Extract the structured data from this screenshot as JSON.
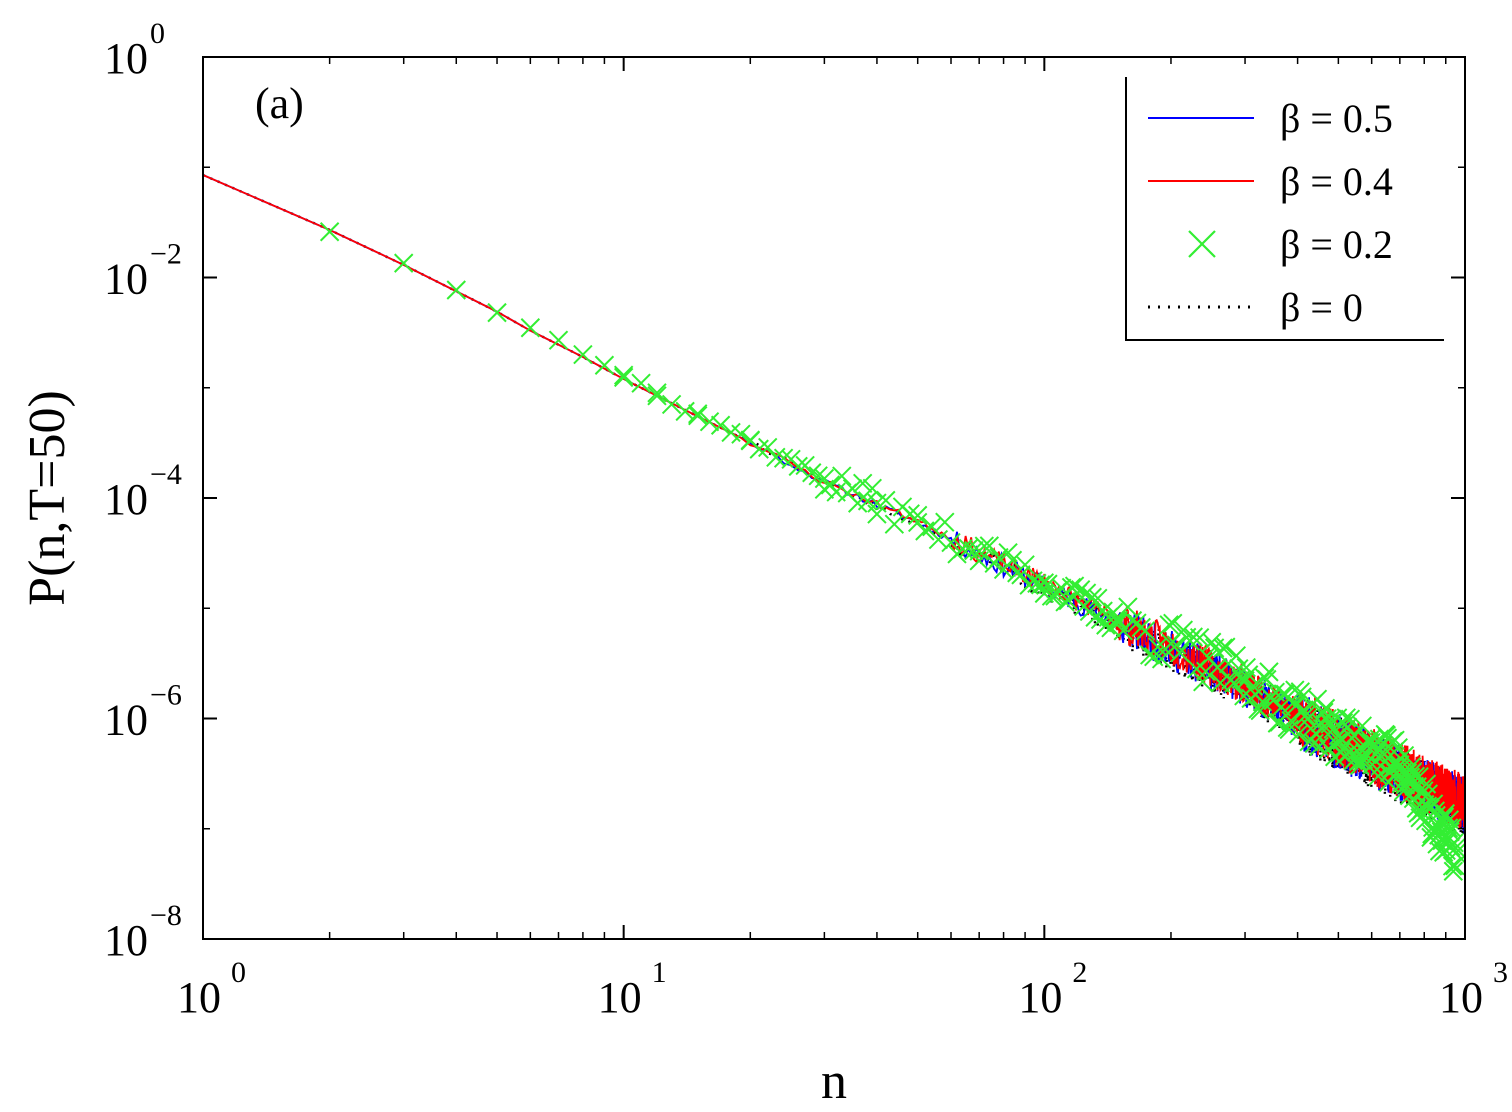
{
  "chart_data": {
    "type": "line",
    "annotation": "(a)",
    "xlabel": "n",
    "ylabel": "P(n,T=50)",
    "xscale": "log",
    "yscale": "log",
    "xlim": [
      1,
      1000
    ],
    "ylim": [
      1e-08,
      1
    ],
    "x_ticks": [
      {
        "value": 1,
        "base": "10",
        "exp": "0"
      },
      {
        "value": 10,
        "base": "10",
        "exp": "1"
      },
      {
        "value": 100,
        "base": "10",
        "exp": "2"
      },
      {
        "value": 1000,
        "base": "10",
        "exp": "3"
      }
    ],
    "y_ticks": [
      {
        "value": 1,
        "base": "10",
        "exp": "0"
      },
      {
        "value": 0.01,
        "base": "10",
        "exp": "−2"
      },
      {
        "value": 0.0001,
        "base": "10",
        "exp": "−4"
      },
      {
        "value": 1e-06,
        "base": "10",
        "exp": "−6"
      },
      {
        "value": 1e-08,
        "base": "10",
        "exp": "−8"
      }
    ],
    "grid": false,
    "legend_position": "top-right",
    "trend": {
      "n_values": [
        1,
        2,
        5,
        10,
        20,
        50,
        100,
        200,
        500,
        1000
      ],
      "p_values": [
        0.085,
        0.027,
        0.0045,
        0.0012,
        0.00032,
        6e-05,
        1.6e-05,
        4.2e-06,
        6e-07,
        1.6e-07
      ]
    },
    "series": [
      {
        "name": "β = 0.5",
        "style": "line",
        "color": "#0000ff",
        "noise_seed": 11,
        "x": [
          1,
          2,
          3,
          4,
          5,
          6,
          8,
          10,
          15,
          20,
          30,
          50,
          70,
          100,
          150,
          200,
          300,
          500,
          700,
          1000
        ],
        "y": [
          0.085,
          0.027,
          0.013,
          0.0075,
          0.0049,
          0.0033,
          0.0019,
          0.0012,
          0.00055,
          0.00032,
          0.00014,
          6e-05,
          3.1e-05,
          1.6e-05,
          7.2e-06,
          4.2e-06,
          1.9e-06,
          6e-07,
          3.2e-07,
          1.6e-07
        ]
      },
      {
        "name": "β = 0.4",
        "style": "line",
        "color": "#ff0000",
        "noise_seed": 23,
        "x": [
          1,
          2,
          3,
          4,
          5,
          6,
          8,
          10,
          15,
          20,
          30,
          50,
          70,
          100,
          150,
          200,
          300,
          500,
          700,
          1000
        ],
        "y": [
          0.085,
          0.027,
          0.013,
          0.0075,
          0.0049,
          0.0033,
          0.0019,
          0.0012,
          0.00055,
          0.00032,
          0.00014,
          6.2e-05,
          3.2e-05,
          1.7e-05,
          7.6e-06,
          4.5e-06,
          2e-06,
          6.5e-07,
          3.4e-07,
          1.7e-07
        ]
      },
      {
        "name": "β = 0.2",
        "style": "marker",
        "marker": "x",
        "color": "#33ee33",
        "noise_seed": 37,
        "x": [
          2,
          3,
          4,
          5,
          6,
          7,
          8,
          9,
          10,
          12,
          15,
          20,
          30,
          40,
          50,
          70,
          100,
          150,
          200,
          300,
          500,
          700,
          950
        ],
        "y": [
          0.026,
          0.0135,
          0.0077,
          0.0048,
          0.0035,
          0.0027,
          0.002,
          0.0016,
          0.0013,
          0.0009,
          0.00058,
          0.00033,
          0.00015,
          9e-05,
          6e-05,
          3.3e-05,
          1.7e-05,
          7.8e-06,
          4.8e-06,
          2.2e-06,
          7e-07,
          3.8e-07,
          6e-08
        ]
      },
      {
        "name": "β = 0",
        "style": "dotted",
        "color": "#000000",
        "noise_seed": 51,
        "x": [
          1,
          2,
          3,
          4,
          5,
          6,
          8,
          10,
          15,
          20,
          30,
          50,
          70,
          100,
          150,
          200,
          300,
          500,
          700,
          1000
        ],
        "y": [
          0.085,
          0.027,
          0.013,
          0.0075,
          0.0049,
          0.0033,
          0.0019,
          0.0012,
          0.00055,
          0.00032,
          0.00014,
          5.8e-05,
          3e-05,
          1.5e-05,
          7e-06,
          4e-06,
          1.8e-06,
          5.8e-07,
          3e-07,
          1.5e-07
        ]
      }
    ]
  }
}
